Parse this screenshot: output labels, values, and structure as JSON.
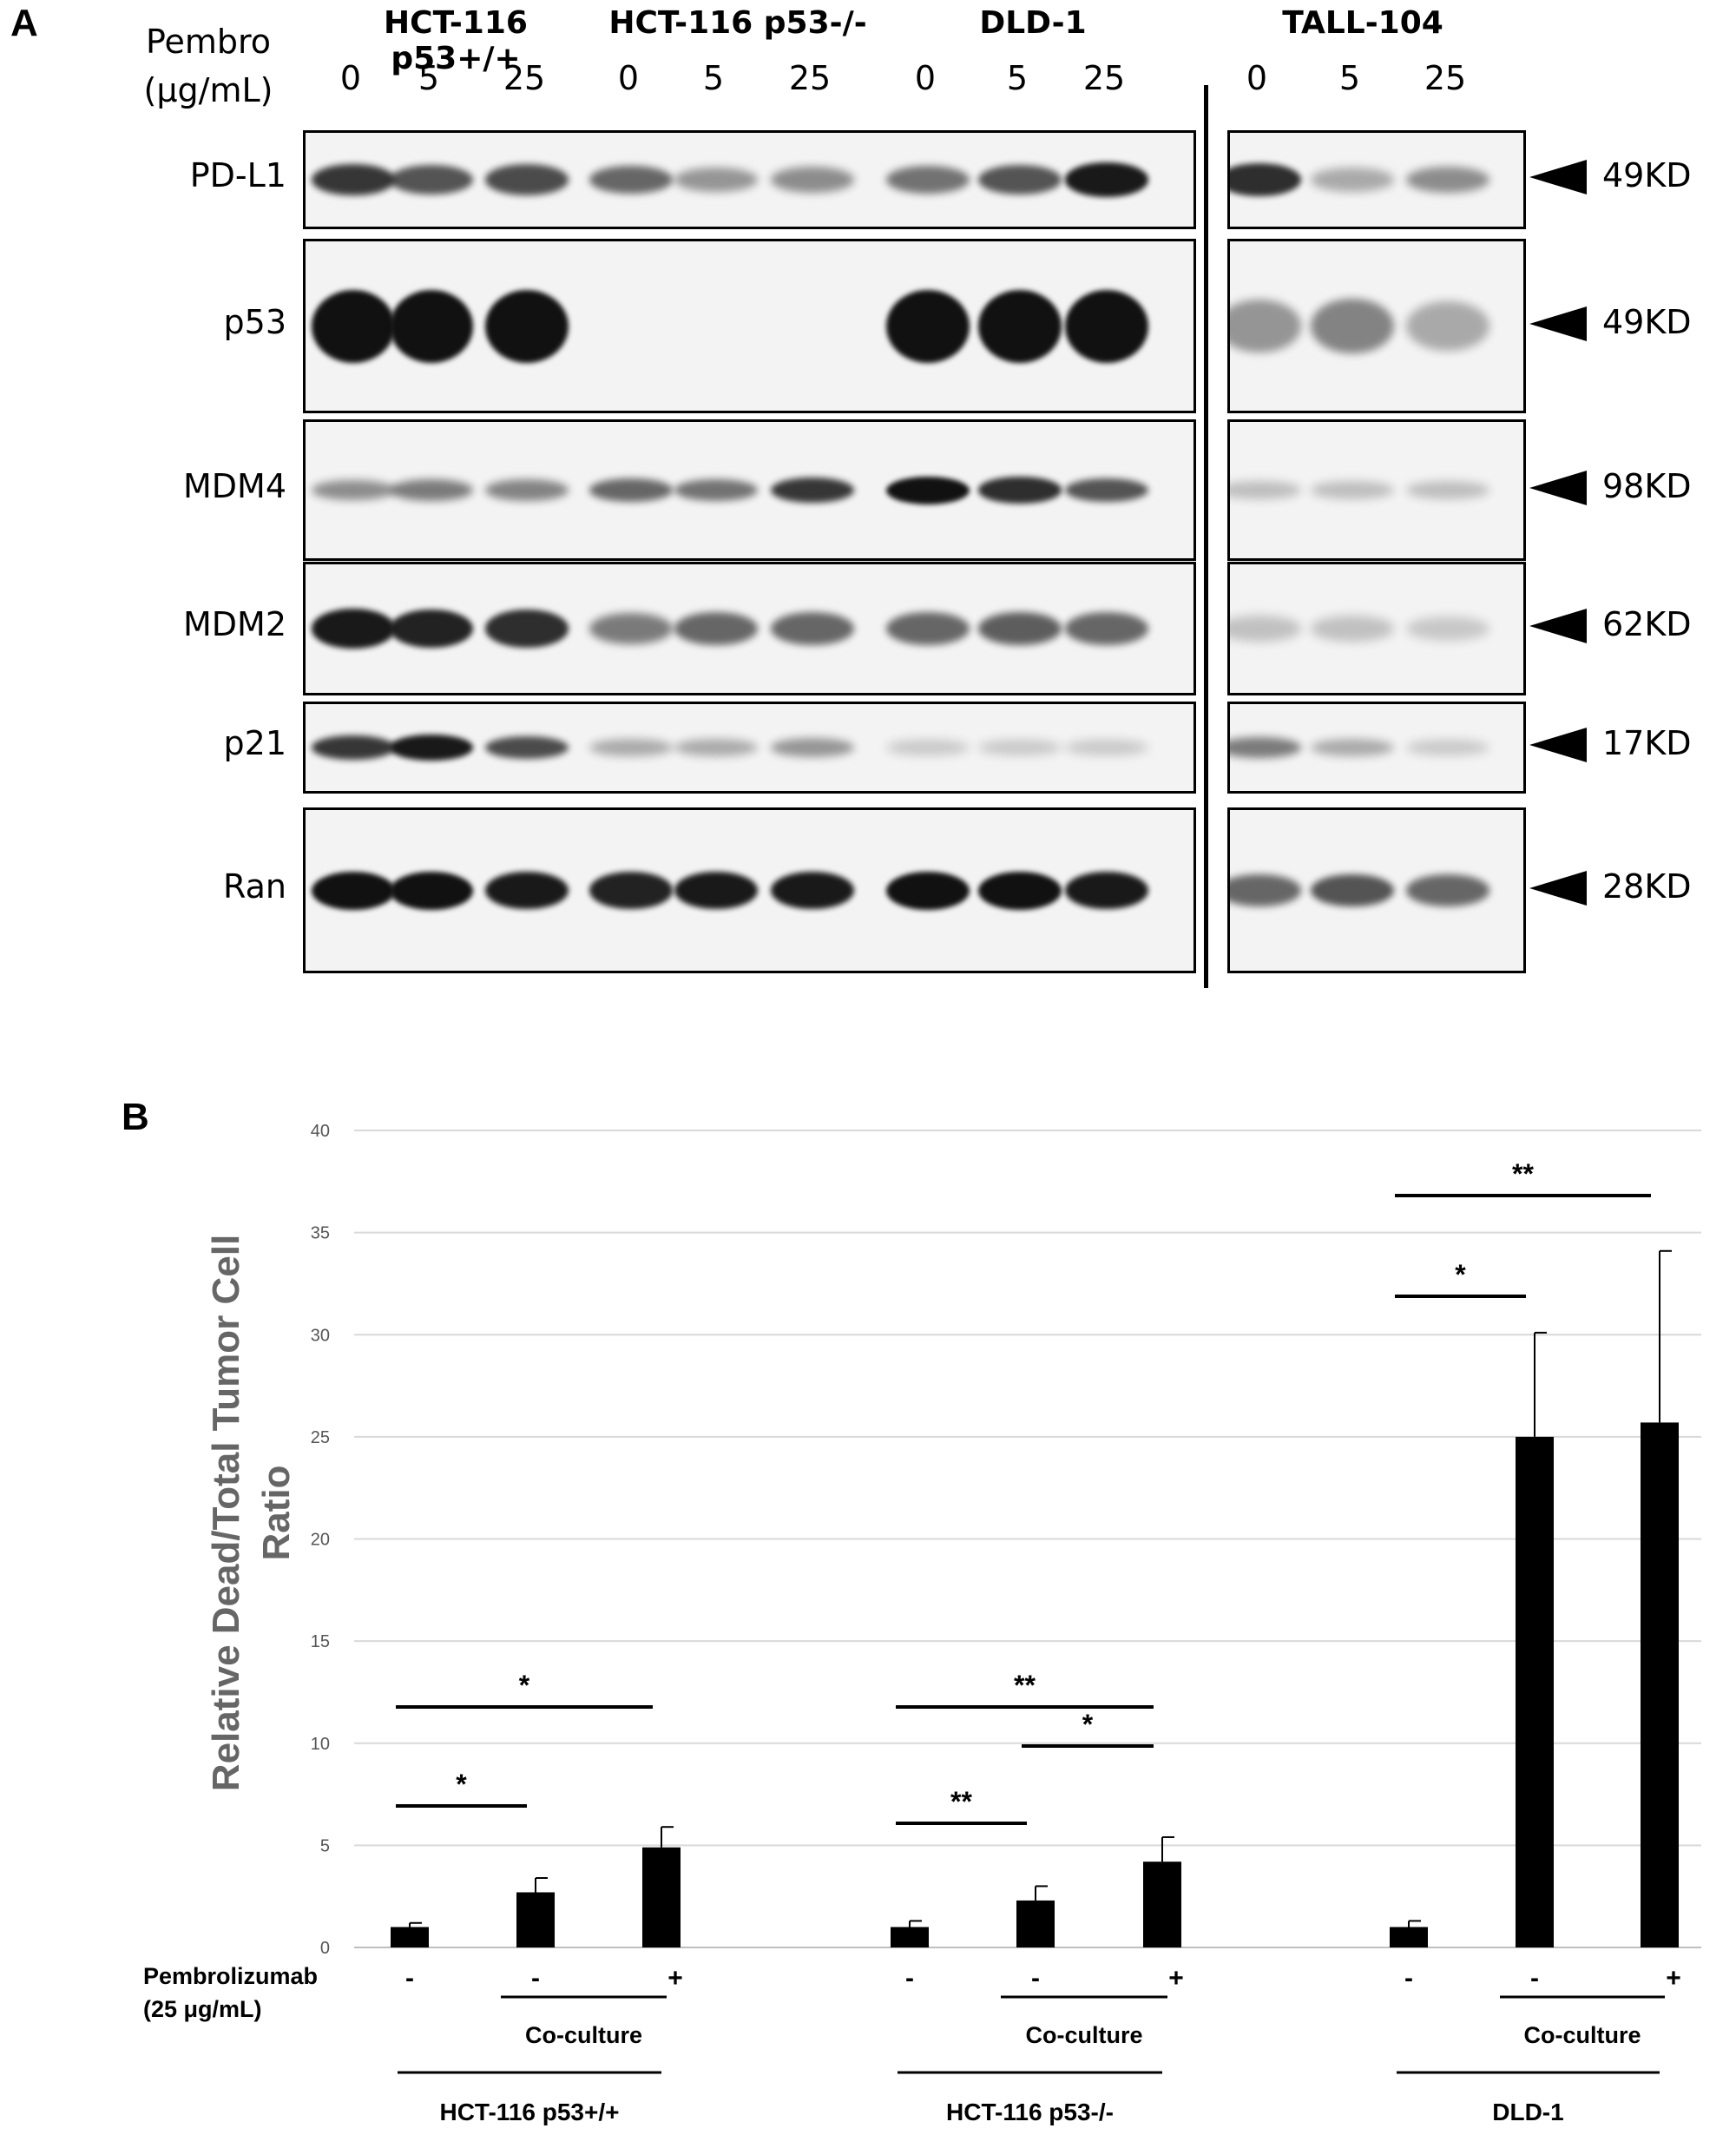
{
  "panel_a": {
    "label": "A",
    "treatment_label_line1": "Pembro",
    "treatment_label_line2": "(μg/mL)",
    "cell_lines": [
      "HCT-116 p53+/+",
      "HCT-116 p53-/-",
      "DLD-1",
      "TALL-104"
    ],
    "doses": [
      "0",
      "5",
      "25",
      "0",
      "5",
      "25",
      "0",
      "5",
      "25",
      "0",
      "5",
      "25"
    ],
    "proteins": [
      {
        "name": "PD-L1",
        "size": "49KD"
      },
      {
        "name": "p53",
        "size": "49KD"
      },
      {
        "name": "MDM4",
        "size": "98KD"
      },
      {
        "name": "MDM2",
        "size": "62KD"
      },
      {
        "name": "p21",
        "size": "17KD"
      },
      {
        "name": "Ran",
        "size": "28KD"
      }
    ],
    "band_intensity": [
      [
        0.8,
        0.65,
        0.7,
        0.55,
        0.3,
        0.35,
        0.5,
        0.65,
        0.95,
        0.85,
        0.2,
        0.35
      ],
      [
        1.0,
        1.0,
        1.0,
        0.0,
        0.0,
        0.0,
        1.0,
        1.0,
        1.0,
        0.3,
        0.4,
        0.2
      ],
      [
        0.35,
        0.45,
        0.4,
        0.55,
        0.5,
        0.8,
        1.0,
        0.85,
        0.65,
        0.1,
        0.1,
        0.1
      ],
      [
        0.95,
        0.9,
        0.85,
        0.45,
        0.55,
        0.55,
        0.55,
        0.6,
        0.55,
        0.08,
        0.08,
        0.05
      ],
      [
        0.8,
        0.95,
        0.7,
        0.2,
        0.2,
        0.3,
        0.05,
        0.05,
        0.05,
        0.45,
        0.2,
        0.05
      ],
      [
        1.0,
        1.0,
        0.95,
        0.9,
        0.95,
        0.95,
        1.0,
        1.0,
        0.95,
        0.55,
        0.65,
        0.55
      ]
    ]
  },
  "panel_b": {
    "label": "B",
    "pembro_row_label_line1": "Pembrolizumab",
    "pembro_row_label_line2": "(25 μg/mL)",
    "coculture_label": "Co-culture",
    "groups": [
      "HCT-116 p53+/+",
      "HCT-116 p53-/-",
      "DLD-1"
    ],
    "pembro_signs": [
      "-",
      "-",
      "+",
      "-",
      "-",
      "+",
      "-",
      "-",
      "+"
    ],
    "significance": [
      {
        "from": 0,
        "to": 1,
        "label": "*"
      },
      {
        "from": 0,
        "to": 2,
        "label": "*"
      },
      {
        "from": 3,
        "to": 4,
        "label": "**"
      },
      {
        "from": 4,
        "to": 5,
        "label": "*"
      },
      {
        "from": 3,
        "to": 5,
        "label": "**"
      },
      {
        "from": 6,
        "to": 7,
        "label": "*"
      },
      {
        "from": 6,
        "to": 8,
        "label": "**"
      }
    ]
  },
  "chart_data": {
    "type": "bar",
    "title": "",
    "xlabel": "",
    "ylabel": "Relative Dead/Total Tumor Cell Ratio",
    "ylim": [
      0,
      40
    ],
    "yticks": [
      0,
      5,
      10,
      15,
      20,
      25,
      30,
      35,
      40
    ],
    "grid": true,
    "bar_color": "#000000",
    "categories": [
      "HCT-116 p53+/+",
      "HCT-116 p53+/+ co-culture",
      "HCT-116 p53+/+ co-culture + pembro",
      "HCT-116 p53-/-",
      "HCT-116 p53-/- co-culture",
      "HCT-116 p53-/- co-culture + pembro",
      "DLD-1",
      "DLD-1 co-culture",
      "DLD-1 co-culture + pembro"
    ],
    "values": [
      1.0,
      2.7,
      4.9,
      1.0,
      2.3,
      4.2,
      1.0,
      25.0,
      25.7
    ],
    "errors": [
      0.2,
      0.7,
      1.0,
      0.3,
      0.7,
      1.2,
      0.3,
      5.1,
      8.4
    ]
  }
}
